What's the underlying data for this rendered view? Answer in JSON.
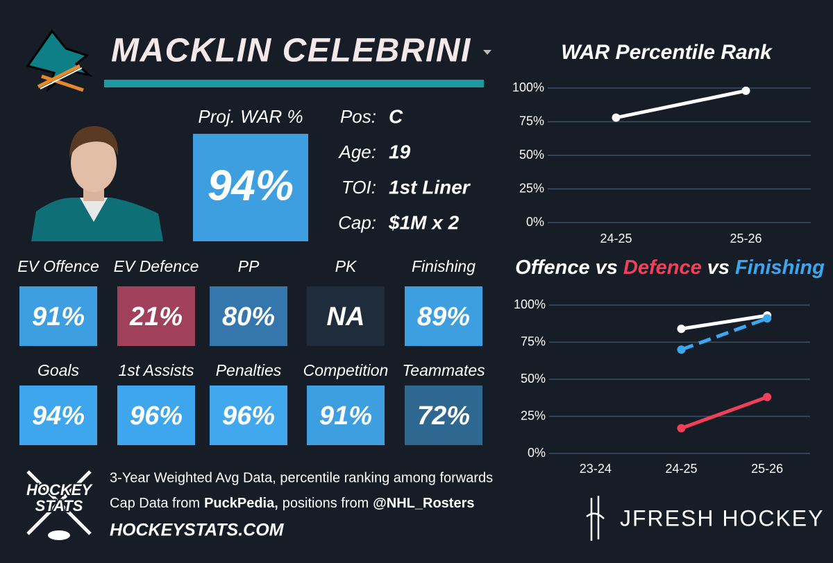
{
  "header": {
    "player_name": "MACKLIN CELEBRINI"
  },
  "profile": {
    "proj_war_label": "Proj. WAR %",
    "proj_war_value": "94%",
    "info": [
      {
        "label": "Pos:",
        "value": "C"
      },
      {
        "label": "Age:",
        "value": "19"
      },
      {
        "label": "TOI:",
        "value": "1st Liner"
      },
      {
        "label": "Cap:",
        "value": "$1M x 2"
      }
    ]
  },
  "tiles": [
    [
      {
        "label": "EV Offence",
        "value": "91%",
        "color": "#3d9fe0"
      },
      {
        "label": "EV Defence",
        "value": "21%",
        "color": "#a0405a"
      },
      {
        "label": "PP",
        "value": "80%",
        "color": "#3577ad"
      },
      {
        "label": "PK",
        "value": "NA",
        "color": "#1e2c3c"
      },
      {
        "label": "Finishing",
        "value": "89%",
        "color": "#3d9fe0"
      }
    ],
    [
      {
        "label": "Goals",
        "value": "94%",
        "color": "#3ea6ec"
      },
      {
        "label": "1st Assists",
        "value": "96%",
        "color": "#3ea6ec"
      },
      {
        "label": "Penalties",
        "value": "96%",
        "color": "#42a8ee"
      },
      {
        "label": "Competition",
        "value": "91%",
        "color": "#3d9fe0"
      },
      {
        "label": "Teammates",
        "value": "72%",
        "color": "#2e6790"
      }
    ]
  ],
  "footer": {
    "logo_lines": [
      "HOCKEY",
      "STATS"
    ],
    "note_1": "3-Year Weighted Avg Data, percentile ranking among forwards",
    "note_2": [
      "Cap Data from",
      "PuckPedia,",
      "positions from",
      "@NHL_Rosters"
    ],
    "site": "HOCKEYSTATS.COM",
    "brand": "JFRESH HOCKEY"
  },
  "chart_data": [
    {
      "type": "line",
      "title": "WAR Percentile Rank",
      "categories": [
        "24-25",
        "25-26"
      ],
      "values": [
        78,
        98
      ],
      "color": "#ffffff",
      "ylim": [
        0,
        100
      ],
      "yticks": [
        {
          "value": 0,
          "label": "0%"
        },
        {
          "value": 25,
          "label": "25%"
        },
        {
          "value": 50,
          "label": "50%"
        },
        {
          "value": 75,
          "label": "75%"
        },
        {
          "value": 100,
          "label": "100%"
        }
      ],
      "grid": true
    },
    {
      "type": "line",
      "title_connector": "vs",
      "categories": [
        "23-24",
        "24-25",
        "25-26"
      ],
      "series": [
        {
          "name": "Offence",
          "color": "#ffffff",
          "values": [
            null,
            84,
            93
          ]
        },
        {
          "name": "Defence",
          "color": "#f0405a",
          "values": [
            null,
            17,
            38
          ]
        },
        {
          "name": "Finishing",
          "color": "#3aa7ef",
          "dashed": true,
          "values": [
            null,
            70,
            91
          ]
        }
      ],
      "ylim": [
        0,
        100
      ],
      "yticks": [
        {
          "value": 0,
          "label": "0%"
        },
        {
          "value": 25,
          "label": "25%"
        },
        {
          "value": 50,
          "label": "50%"
        },
        {
          "value": 75,
          "label": "75%"
        },
        {
          "value": 100,
          "label": "100%"
        }
      ],
      "grid": true
    }
  ]
}
